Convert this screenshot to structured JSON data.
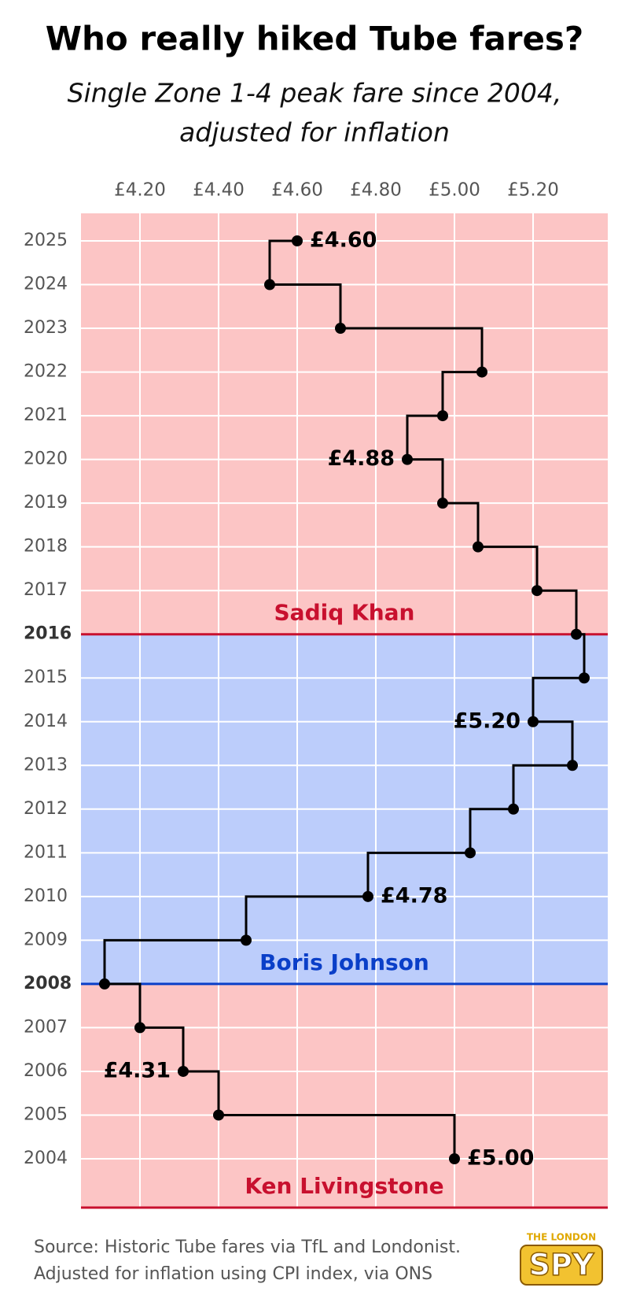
{
  "chart_data": {
    "type": "step",
    "title": "Who really hiked Tube fares?",
    "subtitle": [
      "Single Zone 1-4 peak fare since 2004,",
      "adjusted for inflation"
    ],
    "categories": [
      "2004",
      "2005",
      "2006",
      "2007",
      "2008",
      "2009",
      "2010",
      "2011",
      "2012",
      "2013",
      "2014",
      "2015",
      "2016",
      "2017",
      "2018",
      "2019",
      "2020",
      "2021",
      "2022",
      "2023",
      "2024",
      "2025"
    ],
    "values": [
      5.0,
      4.4,
      4.31,
      4.2,
      4.11,
      4.47,
      4.78,
      5.04,
      5.15,
      5.3,
      5.2,
      5.33,
      5.31,
      5.21,
      5.06,
      4.97,
      4.88,
      4.97,
      5.07,
      4.71,
      4.53,
      4.6
    ],
    "value_labels": [
      "£5.00",
      null,
      "£4.31",
      null,
      null,
      null,
      "£4.78",
      null,
      null,
      null,
      "£5.20",
      null,
      null,
      null,
      null,
      null,
      "£4.88",
      null,
      null,
      null,
      null,
      "£4.60"
    ],
    "color": "#000000",
    "xlim": [
      4.05,
      5.39
    ],
    "xticks": [
      {
        "value": 4.2,
        "label": "£4.20"
      },
      {
        "value": 4.4,
        "label": "£4.40"
      },
      {
        "value": 4.6,
        "label": "£4.60"
      },
      {
        "value": 4.8,
        "label": "£4.80"
      },
      {
        "value": 5.0,
        "label": "£5.00"
      },
      {
        "value": 5.2,
        "label": "£5.20"
      }
    ],
    "grid": true,
    "eras": [
      {
        "name": "Ken Livingstone",
        "start": null,
        "color": "#c8102e",
        "band": "#fcc5c5"
      },
      {
        "name": "Boris Johnson",
        "start": "2008",
        "color": "#0a3fc8",
        "band": "#bccdfb"
      },
      {
        "name": "Sadiq Khan",
        "start": "2016",
        "color": "#c8102e",
        "band": "#fcc5c5"
      }
    ],
    "source": [
      "Source: Historic Tube fares via TfL and Londonist.",
      "Adjusted for inflation using CPI index, via ONS"
    ],
    "logo": {
      "top": "THE LONDON",
      "main": "SPY"
    }
  }
}
